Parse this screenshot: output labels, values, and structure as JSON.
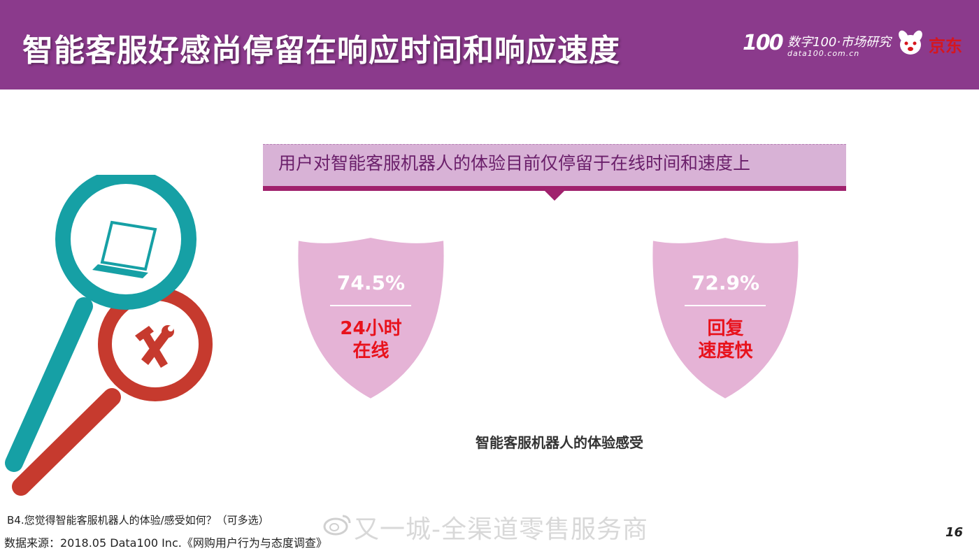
{
  "header": {
    "title": "智能客服好感尚停留在响应时间和响应速度",
    "logo": {
      "mark": "100",
      "name": "数字100·市场研究",
      "domain": "data100.com.cn",
      "partner": "京东"
    }
  },
  "banner": {
    "text": "用户对智能客服机器人的体验目前仅停留于在线时间和速度上"
  },
  "shields": [
    {
      "value": "74.5%",
      "label_line1": "24小时",
      "label_line2": "在线"
    },
    {
      "value": "72.9%",
      "label_line1": "回复",
      "label_line2": "速度快"
    }
  ],
  "caption": "智能客服机器人的体验感受",
  "footer": {
    "question": "B4.您觉得智能客服机器人的体验/感受如何？（可多选）",
    "source": "数据来源：2018.05 Data100 Inc.《网购用户行为与态度调查》",
    "page_number": "16"
  },
  "watermark": "又一城-全渠道零售服务商",
  "colors": {
    "header_bg": "#8b3a8c",
    "banner_bg": "#d8b2d6",
    "banner_bar": "#a0216d",
    "shield_fill": "#e5b3d6",
    "shield_label": "#e8121c",
    "teal_magnifier": "#16a0a5",
    "red_magnifier": "#c63a2e"
  },
  "icons": [
    "laptop-icon",
    "tools-icon",
    "magnifier-teal",
    "magnifier-red",
    "weibo-icon"
  ]
}
